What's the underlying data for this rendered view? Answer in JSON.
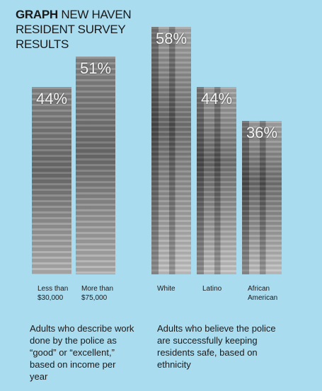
{
  "title_bold": "GRAPH",
  "title": "NEW HAVEN RESIDENT SURVEY RESULTS",
  "chart_data": [
    {
      "type": "bar",
      "categories": [
        "Less than $30,000",
        "More than $75,000"
      ],
      "values": [
        44,
        51
      ],
      "value_labels": [
        "44%",
        "51%"
      ],
      "caption": "Adults who describe work done by the police as “good” or “excellent,” based on income per year"
    },
    {
      "type": "bar",
      "categories": [
        "White",
        "Latino",
        "African American"
      ],
      "values": [
        58,
        44,
        36
      ],
      "value_labels": [
        "58%",
        "44%",
        "36%"
      ],
      "caption": "Adults who believe the police are successfully keeping residents safe, based on ethnicity"
    }
  ]
}
